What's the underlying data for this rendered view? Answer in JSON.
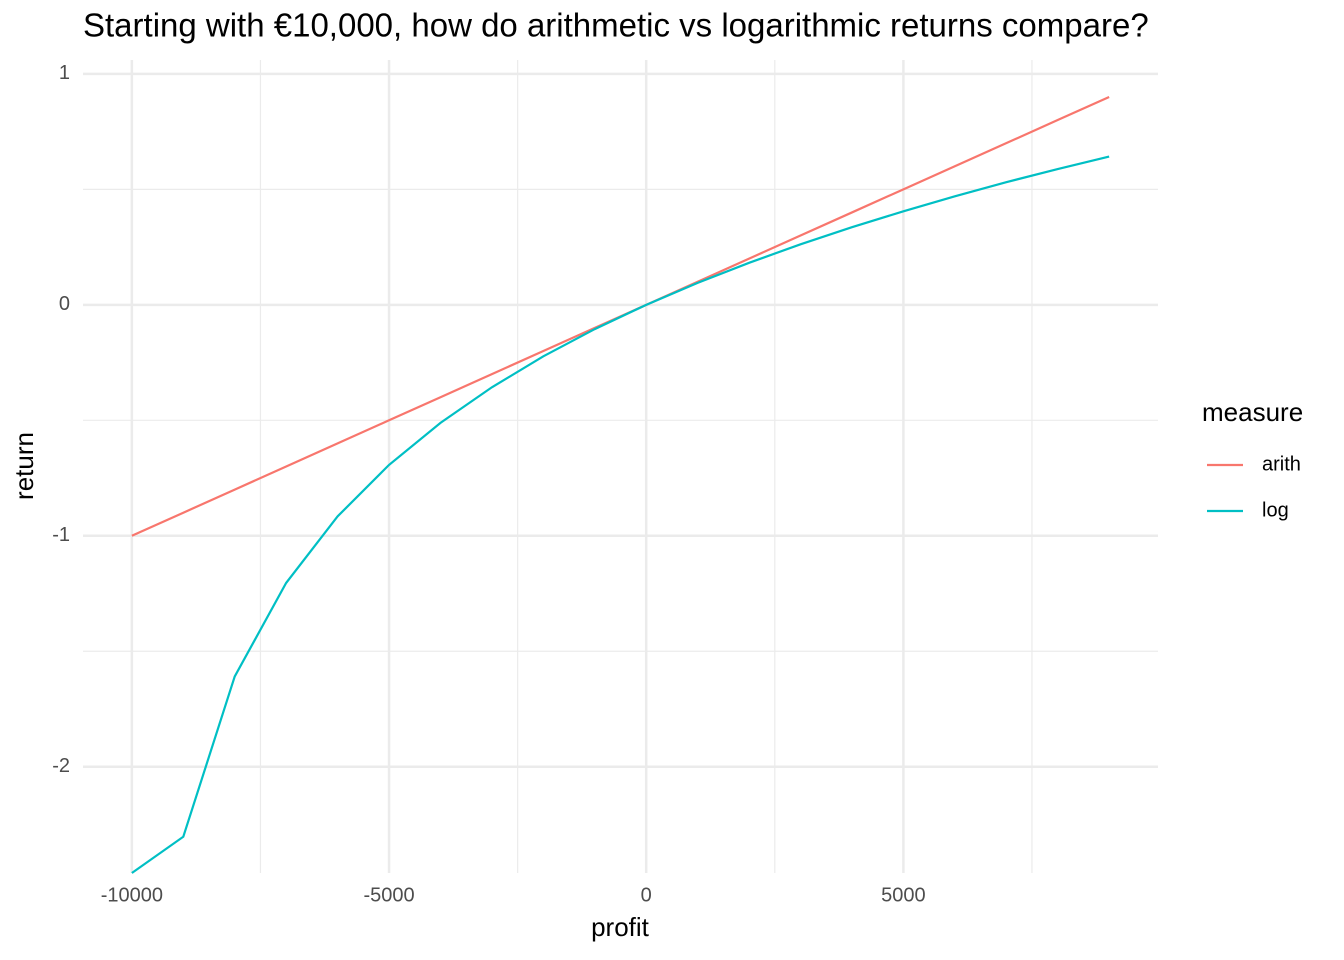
{
  "chart_data": {
    "type": "line",
    "title": "Starting with €10,000, how do arithmetic vs logarithmic returns compare?",
    "x_label": "profit",
    "y_label": "return",
    "legend_title": "measure",
    "legend_position": "right",
    "x": [
      -10000,
      -9000,
      -8000,
      -7000,
      -6000,
      -5000,
      -4000,
      -3000,
      -2000,
      -1000,
      0,
      1000,
      2000,
      3000,
      4000,
      5000,
      6000,
      7000,
      8000,
      9000
    ],
    "series": [
      {
        "name": "arith",
        "color": "#F8766D",
        "values": [
          -1,
          -0.9,
          -0.8,
          -0.7,
          -0.6,
          -0.5,
          -0.4,
          -0.3,
          -0.2,
          -0.1,
          0,
          0.1,
          0.2,
          0.3,
          0.4,
          0.5,
          0.6,
          0.7,
          0.8,
          0.9
        ]
      },
      {
        "name": "log",
        "color": "#00BFC4",
        "values": [
          -2.46,
          -2.303,
          -1.609,
          -1.204,
          -0.916,
          -0.693,
          -0.511,
          -0.357,
          -0.223,
          -0.105,
          0,
          0.095,
          0.182,
          0.262,
          0.336,
          0.405,
          0.47,
          0.531,
          0.588,
          0.642
        ]
      }
    ],
    "xlim": [
      -10950,
      9950
    ],
    "ylim": [
      -2.46,
      1.06
    ],
    "xticks": [
      -10000,
      -5000,
      0,
      5000
    ],
    "yticks": [
      -2,
      -1,
      0,
      1
    ],
    "xminor": [
      -7500,
      -2500,
      2500,
      7500
    ],
    "yminor": [
      -1.5,
      -0.5,
      0.5
    ],
    "grid": true
  }
}
